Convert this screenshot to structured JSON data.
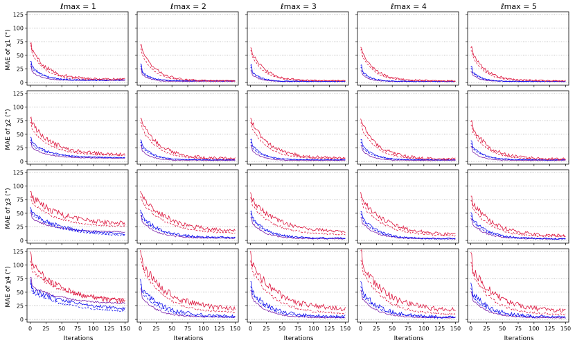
{
  "figure": {
    "column_titles": [
      "ℓmax = 1",
      "ℓmax = 2",
      "ℓmax = 3",
      "ℓmax = 4",
      "ℓmax = 5"
    ],
    "row_ylabels": [
      "MAE of χ1 (°)",
      "MAE of χ2 (°)",
      "MAE of χ3 (°)",
      "MAE of χ4 (°)"
    ],
    "xlabel": "Iterations",
    "colors": {
      "red_series": "#dc143c",
      "blue_series": "#1010ee",
      "purple_series": "#7a1fa8",
      "grid": "#777777"
    }
  },
  "chart_data": {
    "type": "line",
    "layout": "grid 4 rows x 5 columns",
    "xlim": [
      -5,
      155
    ],
    "ylim": [
      -5,
      130
    ],
    "x_ticks": [
      0,
      25,
      50,
      75,
      100,
      125,
      150
    ],
    "y_ticks": [
      0,
      25,
      50,
      75,
      100,
      125
    ],
    "grid": "horizontal dotted",
    "series_styles": [
      {
        "key": "red_solid",
        "color": "#dc143c",
        "dash": "solid"
      },
      {
        "key": "red_dashed",
        "color": "#dc143c",
        "dash": "dashed"
      },
      {
        "key": "blue_solid",
        "color": "#1010ee",
        "dash": "solid"
      },
      {
        "key": "blue_dashed",
        "color": "#1010ee",
        "dash": "dashed"
      },
      {
        "key": "purple_solid",
        "color": "#7a1fa8",
        "dash": "solid"
      }
    ],
    "panels": [
      {
        "row": 0,
        "col": 0,
        "red_solid": {
          "start": 72,
          "peak": 60,
          "end": 6,
          "noise": 4,
          "decay": 25
        },
        "red_dashed": {
          "start": 68,
          "peak": 55,
          "end": 5,
          "noise": 2,
          "decay": 22
        },
        "blue_solid": {
          "start": 40,
          "peak": 30,
          "end": 4,
          "noise": 2,
          "decay": 18
        },
        "blue_dashed": {
          "start": 35,
          "peak": 25,
          "end": 5,
          "noise": 1.5,
          "decay": 18
        },
        "purple_solid": {
          "start": 30,
          "peak": 20,
          "end": 4,
          "noise": 1,
          "decay": 15
        }
      },
      {
        "row": 0,
        "col": 1,
        "red_solid": {
          "start": 70,
          "peak": 60,
          "end": 3,
          "noise": 3,
          "decay": 22
        },
        "red_dashed": {
          "start": 62,
          "peak": 50,
          "end": 3,
          "noise": 1.5,
          "decay": 20
        },
        "blue_solid": {
          "start": 35,
          "peak": 20,
          "end": 3,
          "noise": 1.5,
          "decay": 14
        },
        "blue_dashed": {
          "start": 30,
          "peak": 18,
          "end": 3,
          "noise": 1,
          "decay": 14
        },
        "purple_solid": {
          "start": 25,
          "peak": 15,
          "end": 2,
          "noise": 1,
          "decay": 12
        }
      },
      {
        "row": 0,
        "col": 2,
        "red_solid": {
          "start": 65,
          "peak": 55,
          "end": 3,
          "noise": 3,
          "decay": 22
        },
        "red_dashed": {
          "start": 60,
          "peak": 48,
          "end": 3,
          "noise": 1.5,
          "decay": 20
        },
        "blue_solid": {
          "start": 32,
          "peak": 20,
          "end": 2,
          "noise": 1.5,
          "decay": 14
        },
        "blue_dashed": {
          "start": 28,
          "peak": 18,
          "end": 2,
          "noise": 1,
          "decay": 14
        },
        "purple_solid": {
          "start": 22,
          "peak": 14,
          "end": 2,
          "noise": 1,
          "decay": 12
        }
      },
      {
        "row": 0,
        "col": 3,
        "red_solid": {
          "start": 66,
          "peak": 55,
          "end": 3,
          "noise": 3,
          "decay": 22
        },
        "red_dashed": {
          "start": 60,
          "peak": 48,
          "end": 3,
          "noise": 1.5,
          "decay": 20
        },
        "blue_solid": {
          "start": 32,
          "peak": 20,
          "end": 2,
          "noise": 1.5,
          "decay": 14
        },
        "blue_dashed": {
          "start": 28,
          "peak": 18,
          "end": 2,
          "noise": 1,
          "decay": 14
        },
        "purple_solid": {
          "start": 22,
          "peak": 14,
          "end": 2,
          "noise": 1,
          "decay": 12
        }
      },
      {
        "row": 0,
        "col": 4,
        "red_solid": {
          "start": 64,
          "peak": 55,
          "end": 3,
          "noise": 3,
          "decay": 22
        },
        "red_dashed": {
          "start": 58,
          "peak": 48,
          "end": 3,
          "noise": 1.5,
          "decay": 20
        },
        "blue_solid": {
          "start": 30,
          "peak": 20,
          "end": 2,
          "noise": 1.5,
          "decay": 14
        },
        "blue_dashed": {
          "start": 26,
          "peak": 18,
          "end": 2,
          "noise": 1,
          "decay": 14
        },
        "purple_solid": {
          "start": 20,
          "peak": 14,
          "end": 2,
          "noise": 1,
          "decay": 12
        }
      },
      {
        "row": 1,
        "col": 0,
        "red_solid": {
          "start": 80,
          "peak": 70,
          "end": 12,
          "noise": 6,
          "decay": 35
        },
        "red_dashed": {
          "start": 72,
          "peak": 60,
          "end": 11,
          "noise": 2,
          "decay": 30
        },
        "blue_solid": {
          "start": 45,
          "peak": 35,
          "end": 7,
          "noise": 2,
          "decay": 28
        },
        "blue_dashed": {
          "start": 40,
          "peak": 30,
          "end": 7,
          "noise": 1.5,
          "decay": 28
        },
        "purple_solid": {
          "start": 35,
          "peak": 25,
          "end": 6,
          "noise": 1,
          "decay": 25
        }
      },
      {
        "row": 1,
        "col": 1,
        "red_solid": {
          "start": 80,
          "peak": 70,
          "end": 5,
          "noise": 5,
          "decay": 30
        },
        "red_dashed": {
          "start": 72,
          "peak": 60,
          "end": 4,
          "noise": 2,
          "decay": 26
        },
        "blue_solid": {
          "start": 40,
          "peak": 30,
          "end": 3,
          "noise": 1.5,
          "decay": 18
        },
        "blue_dashed": {
          "start": 35,
          "peak": 25,
          "end": 3,
          "noise": 1,
          "decay": 18
        },
        "purple_solid": {
          "start": 30,
          "peak": 20,
          "end": 2,
          "noise": 1,
          "decay": 15
        }
      },
      {
        "row": 1,
        "col": 2,
        "red_solid": {
          "start": 80,
          "peak": 70,
          "end": 6,
          "noise": 5,
          "decay": 30
        },
        "red_dashed": {
          "start": 72,
          "peak": 60,
          "end": 5,
          "noise": 2,
          "decay": 26
        },
        "blue_solid": {
          "start": 40,
          "peak": 30,
          "end": 3,
          "noise": 1.5,
          "decay": 18
        },
        "blue_dashed": {
          "start": 35,
          "peak": 25,
          "end": 3,
          "noise": 1,
          "decay": 18
        },
        "purple_solid": {
          "start": 30,
          "peak": 20,
          "end": 2,
          "noise": 1,
          "decay": 15
        }
      },
      {
        "row": 1,
        "col": 3,
        "red_solid": {
          "start": 78,
          "peak": 68,
          "end": 4,
          "noise": 5,
          "decay": 28
        },
        "red_dashed": {
          "start": 70,
          "peak": 58,
          "end": 4,
          "noise": 2,
          "decay": 24
        },
        "blue_solid": {
          "start": 40,
          "peak": 30,
          "end": 3,
          "noise": 1.5,
          "decay": 18
        },
        "blue_dashed": {
          "start": 35,
          "peak": 25,
          "end": 3,
          "noise": 1,
          "decay": 18
        },
        "purple_solid": {
          "start": 30,
          "peak": 20,
          "end": 2,
          "noise": 1,
          "decay": 15
        }
      },
      {
        "row": 1,
        "col": 4,
        "red_solid": {
          "start": 72,
          "peak": 62,
          "end": 4,
          "noise": 5,
          "decay": 28
        },
        "red_dashed": {
          "start": 66,
          "peak": 55,
          "end": 4,
          "noise": 2,
          "decay": 24
        },
        "blue_solid": {
          "start": 38,
          "peak": 28,
          "end": 3,
          "noise": 1.5,
          "decay": 18
        },
        "blue_dashed": {
          "start": 33,
          "peak": 24,
          "end": 3,
          "noise": 1,
          "decay": 18
        },
        "purple_solid": {
          "start": 28,
          "peak": 18,
          "end": 2,
          "noise": 1,
          "decay": 15
        }
      },
      {
        "row": 2,
        "col": 0,
        "red_solid": {
          "start": 88,
          "peak": 80,
          "end": 30,
          "noise": 8,
          "decay": 45
        },
        "red_dashed": {
          "start": 80,
          "peak": 70,
          "end": 25,
          "noise": 3,
          "decay": 40
        },
        "blue_solid": {
          "start": 60,
          "peak": 50,
          "end": 10,
          "noise": 5,
          "decay": 50
        },
        "blue_dashed": {
          "start": 55,
          "peak": 48,
          "end": 8,
          "noise": 2,
          "decay": 45
        },
        "purple_solid": {
          "start": 50,
          "peak": 40,
          "end": 15,
          "noise": 2,
          "decay": 40
        }
      },
      {
        "row": 2,
        "col": 1,
        "red_solid": {
          "start": 88,
          "peak": 80,
          "end": 15,
          "noise": 7,
          "decay": 45
        },
        "red_dashed": {
          "start": 80,
          "peak": 70,
          "end": 12,
          "noise": 3,
          "decay": 40
        },
        "blue_solid": {
          "start": 55,
          "peak": 45,
          "end": 5,
          "noise": 4,
          "decay": 30
        },
        "blue_dashed": {
          "start": 50,
          "peak": 40,
          "end": 5,
          "noise": 2,
          "decay": 28
        },
        "purple_solid": {
          "start": 45,
          "peak": 35,
          "end": 4,
          "noise": 2,
          "decay": 25
        }
      },
      {
        "row": 2,
        "col": 2,
        "red_solid": {
          "start": 86,
          "peak": 75,
          "end": 15,
          "noise": 6,
          "decay": 40
        },
        "red_dashed": {
          "start": 78,
          "peak": 65,
          "end": 10,
          "noise": 3,
          "decay": 35
        },
        "blue_solid": {
          "start": 52,
          "peak": 42,
          "end": 4,
          "noise": 3,
          "decay": 25
        },
        "blue_dashed": {
          "start": 48,
          "peak": 38,
          "end": 4,
          "noise": 2,
          "decay": 24
        },
        "purple_solid": {
          "start": 42,
          "peak": 32,
          "end": 3,
          "noise": 2,
          "decay": 22
        }
      },
      {
        "row": 2,
        "col": 3,
        "red_solid": {
          "start": 86,
          "peak": 75,
          "end": 10,
          "noise": 6,
          "decay": 40
        },
        "red_dashed": {
          "start": 78,
          "peak": 65,
          "end": 8,
          "noise": 3,
          "decay": 35
        },
        "blue_solid": {
          "start": 52,
          "peak": 42,
          "end": 3,
          "noise": 3,
          "decay": 25
        },
        "blue_dashed": {
          "start": 48,
          "peak": 38,
          "end": 3,
          "noise": 2,
          "decay": 24
        },
        "purple_solid": {
          "start": 42,
          "peak": 32,
          "end": 3,
          "noise": 2,
          "decay": 22
        }
      },
      {
        "row": 2,
        "col": 4,
        "red_solid": {
          "start": 78,
          "peak": 70,
          "end": 8,
          "noise": 6,
          "decay": 35
        },
        "red_dashed": {
          "start": 72,
          "peak": 60,
          "end": 7,
          "noise": 3,
          "decay": 30
        },
        "blue_solid": {
          "start": 50,
          "peak": 40,
          "end": 3,
          "noise": 3,
          "decay": 25
        },
        "blue_dashed": {
          "start": 45,
          "peak": 35,
          "end": 3,
          "noise": 2,
          "decay": 24
        },
        "purple_solid": {
          "start": 40,
          "peak": 30,
          "end": 3,
          "noise": 2,
          "decay": 22
        }
      },
      {
        "row": 3,
        "col": 0,
        "red_solid": {
          "start": 118,
          "peak": 100,
          "end": 30,
          "noise": 10,
          "decay": 50
        },
        "red_dashed": {
          "start": 105,
          "peak": 90,
          "end": 35,
          "noise": 4,
          "decay": 45
        },
        "blue_solid": {
          "start": 70,
          "peak": 55,
          "end": 15,
          "noise": 6,
          "decay": 70
        },
        "blue_dashed": {
          "start": 65,
          "peak": 50,
          "end": 12,
          "noise": 3,
          "decay": 60
        },
        "purple_solid": {
          "start": 75,
          "peak": 60,
          "end": 28,
          "noise": 3,
          "decay": 50
        }
      },
      {
        "row": 3,
        "col": 1,
        "red_solid": {
          "start": 120,
          "peak": 105,
          "end": 18,
          "noise": 10,
          "decay": 40
        },
        "red_dashed": {
          "start": 110,
          "peak": 95,
          "end": 12,
          "noise": 4,
          "decay": 35
        },
        "blue_solid": {
          "start": 70,
          "peak": 55,
          "end": 5,
          "noise": 6,
          "decay": 35
        },
        "blue_dashed": {
          "start": 62,
          "peak": 50,
          "end": 4,
          "noise": 3,
          "decay": 30
        },
        "purple_solid": {
          "start": 55,
          "peak": 40,
          "end": 4,
          "noise": 2,
          "decay": 25
        }
      },
      {
        "row": 3,
        "col": 2,
        "red_solid": {
          "start": 118,
          "peak": 100,
          "end": 18,
          "noise": 10,
          "decay": 40
        },
        "red_dashed": {
          "start": 105,
          "peak": 90,
          "end": 10,
          "noise": 4,
          "decay": 35
        },
        "blue_solid": {
          "start": 65,
          "peak": 50,
          "end": 5,
          "noise": 6,
          "decay": 30
        },
        "blue_dashed": {
          "start": 58,
          "peak": 45,
          "end": 4,
          "noise": 3,
          "decay": 28
        },
        "purple_solid": {
          "start": 52,
          "peak": 38,
          "end": 3,
          "noise": 2,
          "decay": 25
        }
      },
      {
        "row": 3,
        "col": 3,
        "red_solid": {
          "start": 118,
          "peak": 100,
          "end": 15,
          "noise": 10,
          "decay": 40
        },
        "red_dashed": {
          "start": 105,
          "peak": 90,
          "end": 8,
          "noise": 4,
          "decay": 35
        },
        "blue_solid": {
          "start": 65,
          "peak": 50,
          "end": 4,
          "noise": 6,
          "decay": 30
        },
        "blue_dashed": {
          "start": 58,
          "peak": 45,
          "end": 4,
          "noise": 3,
          "decay": 28
        },
        "purple_solid": {
          "start": 52,
          "peak": 38,
          "end": 3,
          "noise": 2,
          "decay": 25
        }
      },
      {
        "row": 3,
        "col": 4,
        "red_solid": {
          "start": 115,
          "peak": 95,
          "end": 14,
          "noise": 9,
          "decay": 38
        },
        "red_dashed": {
          "start": 102,
          "peak": 85,
          "end": 8,
          "noise": 4,
          "decay": 32
        },
        "blue_solid": {
          "start": 62,
          "peak": 48,
          "end": 4,
          "noise": 6,
          "decay": 30
        },
        "blue_dashed": {
          "start": 55,
          "peak": 42,
          "end": 4,
          "noise": 3,
          "decay": 28
        },
        "purple_solid": {
          "start": 50,
          "peak": 36,
          "end": 3,
          "noise": 2,
          "decay": 25
        }
      }
    ]
  }
}
